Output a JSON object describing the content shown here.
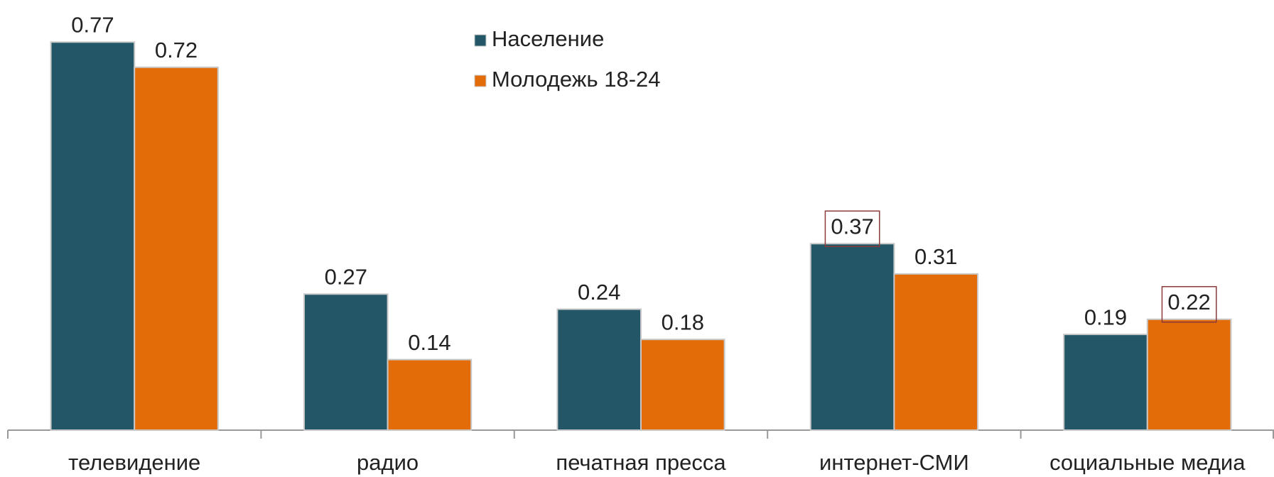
{
  "chart_data": {
    "type": "bar",
    "categories": [
      "телевидение",
      "радио",
      "печатная пресса",
      "интернет-СМИ",
      "социальные медиа"
    ],
    "series": [
      {
        "name": "Население",
        "color": "#235768",
        "values": [
          0.77,
          0.27,
          0.24,
          0.37,
          0.19
        ],
        "boxed": [
          3
        ]
      },
      {
        "name": "Молодежь 18-24",
        "color": "#e36c09",
        "values": [
          0.72,
          0.14,
          0.18,
          0.31,
          0.22
        ],
        "boxed": [
          4
        ]
      }
    ]
  }
}
